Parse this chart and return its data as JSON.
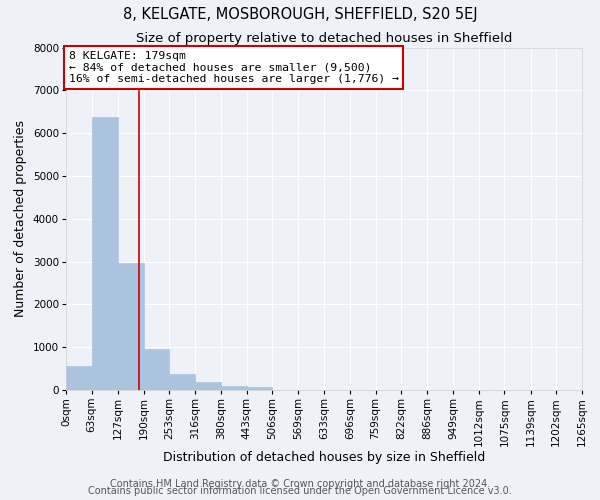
{
  "title": "8, KELGATE, MOSBOROUGH, SHEFFIELD, S20 5EJ",
  "subtitle": "Size of property relative to detached houses in Sheffield",
  "xlabel": "Distribution of detached houses by size in Sheffield",
  "ylabel": "Number of detached properties",
  "bin_edges": [
    0,
    63,
    127,
    190,
    253,
    316,
    380,
    443,
    506,
    569,
    633,
    696,
    759,
    822,
    886,
    949,
    1012,
    1075,
    1139,
    1202,
    1265
  ],
  "bar_heights": [
    550,
    6380,
    2970,
    950,
    380,
    190,
    100,
    60,
    0,
    0,
    0,
    0,
    0,
    0,
    0,
    0,
    0,
    0,
    0,
    0
  ],
  "bar_color": "#aac4e0",
  "bar_edge_color": "#aac4e0",
  "vline_x": 179,
  "vline_color": "#cc0000",
  "annotation_text": "8 KELGATE: 179sqm\n← 84% of detached houses are smaller (9,500)\n16% of semi-detached houses are larger (1,776) →",
  "annotation_box_color": "#ffffff",
  "annotation_box_edge_color": "#cc0000",
  "ylim": [
    0,
    8000
  ],
  "yticks": [
    0,
    1000,
    2000,
    3000,
    4000,
    5000,
    6000,
    7000,
    8000
  ],
  "xlim": [
    0,
    1265
  ],
  "tick_labels": [
    "0sqm",
    "63sqm",
    "127sqm",
    "190sqm",
    "253sqm",
    "316sqm",
    "380sqm",
    "443sqm",
    "506sqm",
    "569sqm",
    "633sqm",
    "696sqm",
    "759sqm",
    "822sqm",
    "886sqm",
    "949sqm",
    "1012sqm",
    "1075sqm",
    "1139sqm",
    "1202sqm",
    "1265sqm"
  ],
  "footer1": "Contains HM Land Registry data © Crown copyright and database right 2024.",
  "footer2": "Contains public sector information licensed under the Open Government Licence v3.0.",
  "background_color": "#eef2f8",
  "grid_color": "#ffffff",
  "title_fontsize": 10.5,
  "subtitle_fontsize": 9.5,
  "axis_label_fontsize": 9,
  "tick_fontsize": 7.5,
  "footer_fontsize": 7
}
